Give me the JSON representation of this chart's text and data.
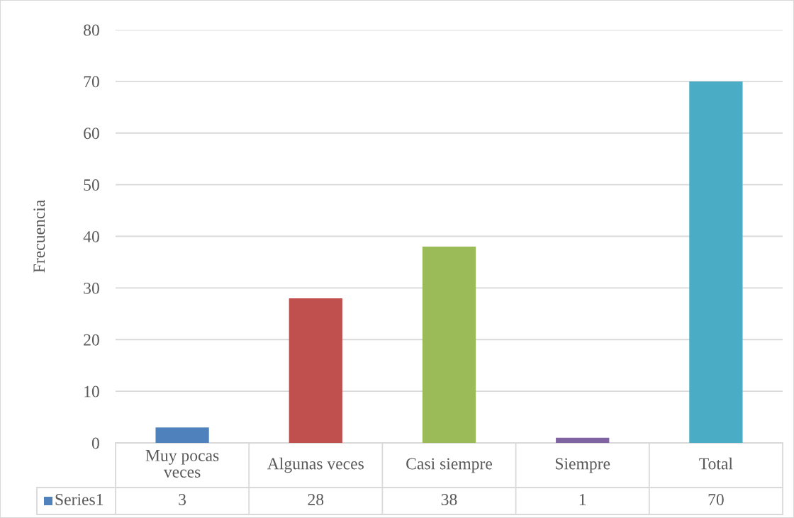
{
  "chart_data": {
    "type": "bar",
    "ylabel": "Frecuencia",
    "categories": [
      "Muy pocas veces",
      "Algunas veces",
      "Casi siempre",
      "Siempre",
      "Total"
    ],
    "series": [
      {
        "name": "Series1",
        "color": "#4f81bd",
        "colors": [
          "#4f81bd",
          "#c0504d",
          "#9bbb59",
          "#8064a2",
          "#4bacc6"
        ],
        "values": [
          3,
          28,
          38,
          1,
          70
        ]
      }
    ],
    "ylim": [
      0,
      80
    ],
    "yticks": [
      0,
      10,
      20,
      30,
      40,
      50,
      60,
      70,
      80
    ],
    "grid": "y",
    "legend": "bottom",
    "data_labels": true
  }
}
